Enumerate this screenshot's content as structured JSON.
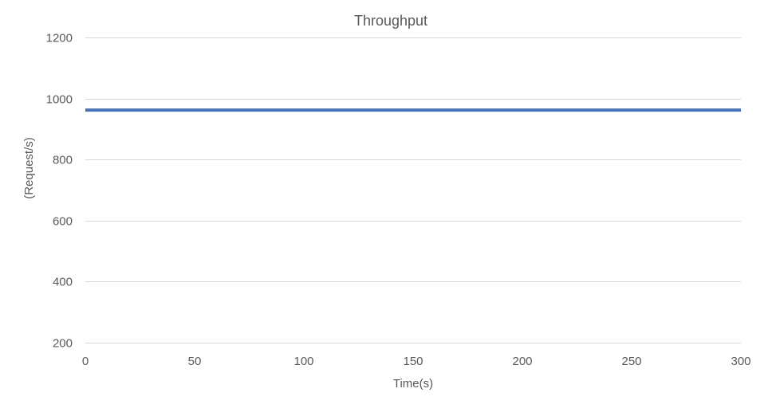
{
  "chart_data": {
    "type": "line",
    "title": "Throughput",
    "xlabel": "Time(s)",
    "ylabel": "(Request/s)",
    "xlim": [
      0,
      300
    ],
    "ylim": [
      200,
      1200
    ],
    "x_ticks": [
      0,
      50,
      100,
      150,
      200,
      250,
      300
    ],
    "y_ticks": [
      200,
      400,
      600,
      800,
      1000,
      1200
    ],
    "grid": "horizontal",
    "legend": "none",
    "series": [
      {
        "x": [
          0,
          300
        ],
        "y": [
          962,
          962
        ],
        "color": "#4472c4"
      }
    ],
    "colors": {
      "line": "#4472c4",
      "grid": "#d9d9d9",
      "text": "#595959",
      "background": "#ffffff"
    }
  }
}
